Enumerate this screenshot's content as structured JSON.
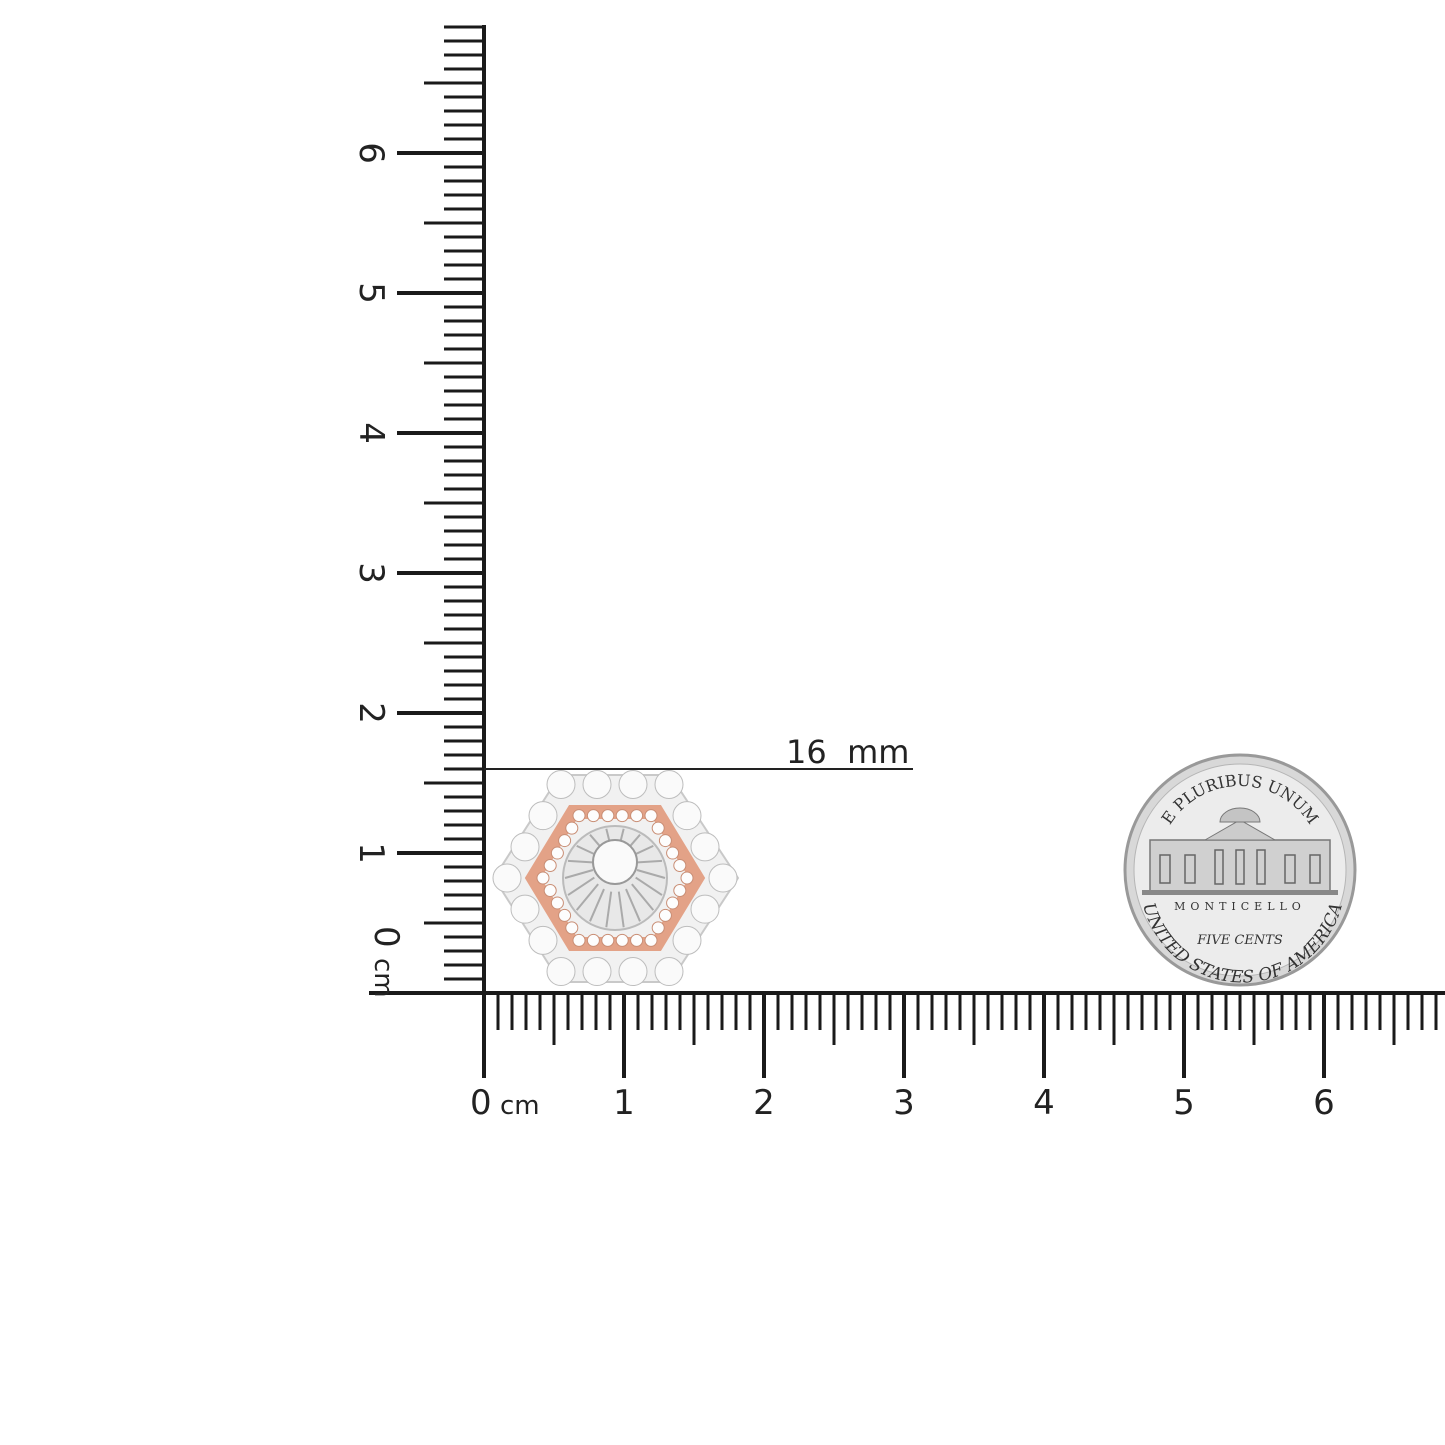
{
  "ruler": {
    "unit": "cm",
    "zero_label": "0",
    "x_labels": [
      "1",
      "2",
      "3",
      "4",
      "5",
      "6"
    ],
    "y_labels": [
      "1",
      "2",
      "3",
      "4",
      "5",
      "6"
    ],
    "max_cm_x": 6.8,
    "max_cm_y": 6.9
  },
  "measurement": {
    "label": "16  mm",
    "value_mm": 16
  },
  "product": {
    "name": "hexagon halo diamond earring",
    "metal_colors": [
      "#e6e6e6",
      "#e7a98e"
    ]
  },
  "coin": {
    "top_text": "E PLURIBUS UNUM",
    "center_text": "MONTICELLO",
    "value_text": "FIVE CENTS",
    "bottom_text": "UNITED STATES OF AMERICA"
  },
  "colors": {
    "ruler": "#1a1a1a",
    "rose_gold": "#e3a287",
    "silver": "#d9d9d9"
  }
}
